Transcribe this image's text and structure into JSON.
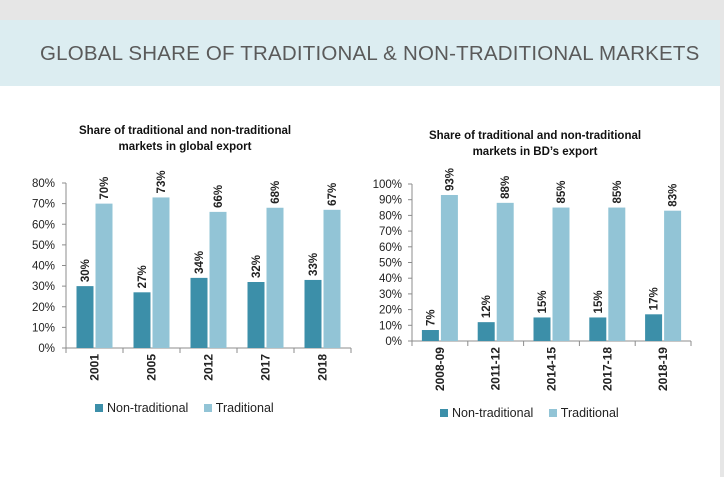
{
  "page": {
    "title": "GLOBAL SHARE OF TRADITIONAL & NON-TRADITIONAL MARKETS"
  },
  "colors": {
    "non_traditional": "#3c8fa9",
    "traditional": "#92c4d6",
    "banner": "#dcedf1"
  },
  "chart_data": [
    {
      "type": "bar",
      "title": "Share of traditional and non-traditional markets in global export",
      "title_lines": [
        "Share of traditional and non-traditional",
        "markets in global export"
      ],
      "categories": [
        "2001",
        "2005",
        "2012",
        "2017",
        "2018"
      ],
      "series": [
        {
          "name": "Non-traditional",
          "values": [
            30,
            27,
            34,
            32,
            33
          ],
          "labels": [
            "30%",
            "27%",
            "34%",
            "32%",
            "33%"
          ]
        },
        {
          "name": "Traditional",
          "values": [
            70,
            73,
            66,
            68,
            67
          ],
          "labels": [
            "70%",
            "73%",
            "66%",
            "68%",
            "67%"
          ]
        }
      ],
      "ylim": [
        0,
        80
      ],
      "yticks": [
        "0%",
        "10%",
        "20%",
        "30%",
        "40%",
        "50%",
        "60%",
        "70%",
        "80%"
      ],
      "grid": false,
      "legend": "bottom"
    },
    {
      "type": "bar",
      "title": "Share of traditional and non-traditional markets in BD’s export",
      "title_lines": [
        "Share of traditional and non-traditional",
        "markets in BD’s export"
      ],
      "categories": [
        "2008-09",
        "2011-12",
        "2014-15",
        "2017-18",
        "2018-19"
      ],
      "series": [
        {
          "name": "Non-traditional",
          "values": [
            7,
            12,
            15,
            15,
            17
          ],
          "labels": [
            "7%",
            "12%",
            "15%",
            "15%",
            "17%"
          ]
        },
        {
          "name": "Traditional",
          "values": [
            93,
            88,
            85,
            85,
            83
          ],
          "labels": [
            "93%",
            "88%",
            "85%",
            "85%",
            "83%"
          ]
        }
      ],
      "ylim": [
        0,
        100
      ],
      "yticks": [
        "0%",
        "10%",
        "20%",
        "30%",
        "40%",
        "50%",
        "60%",
        "70%",
        "80%",
        "90%",
        "100%"
      ],
      "grid": false,
      "legend": "bottom"
    }
  ]
}
